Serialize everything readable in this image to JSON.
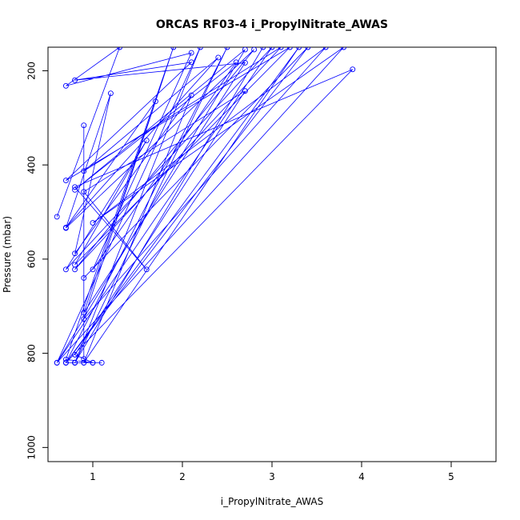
{
  "chart_data": {
    "type": "line",
    "title": "ORCAS RF03-4 i_PropylNitrate_AWAS",
    "xlabel": "i_PropylNitrate_AWAS",
    "ylabel": "Pressure (mbar)",
    "xlim": [
      0.5,
      5.5
    ],
    "ylim": [
      1030,
      150
    ],
    "y_reversed": true,
    "x_ticks": [
      1,
      2,
      3,
      4,
      5
    ],
    "y_ticks": [
      200,
      400,
      600,
      800,
      1000
    ],
    "grid": false,
    "legend": "none",
    "line_color": "#0000ff",
    "marker": "open-circle",
    "series": [
      {
        "x": [
          0.6,
          1.3,
          0.7,
          2.1,
          1.0,
          2.6,
          0.8,
          2.7,
          0.6,
          3.0,
          0.7,
          1.6,
          0.8,
          3.2,
          0.7,
          2.1,
          0.8,
          2.7,
          0.9,
          1.7,
          0.7,
          2.4,
          0.9,
          3.1,
          0.8,
          2.8,
          0.7,
          1.2,
          0.8,
          2.1,
          0.9,
          3.3,
          0.7,
          3.9,
          0.8,
          1.6,
          0.9,
          2.7,
          0.8,
          1.0,
          0.7,
          1.9,
          0.9,
          3.6,
          1.0,
          3.8,
          0.6,
          2.2,
          0.8,
          2.9,
          0.8,
          2.5,
          0.7,
          3.4,
          0.9,
          0.9,
          0.9,
          1.0,
          0.8,
          1.1,
          0.8,
          0.9,
          0.7
        ],
        "y": [
          510,
          150,
          232,
          162,
          622,
          182,
          453,
          155,
          820,
          150,
          622,
          348,
          612,
          150,
          433,
          182,
          220,
          183,
          714,
          265,
          533,
          172,
          413,
          150,
          622,
          155,
          534,
          248,
          588,
          252,
          820,
          150,
          820,
          197,
          447,
          622,
          457,
          243,
          803,
          820,
          813,
          150,
          727,
          150,
          523,
          150,
          820,
          150,
          820,
          150,
          820,
          150,
          820,
          150,
          640,
          316,
          812,
          820,
          820,
          820,
          820,
          820,
          820
        ]
      }
    ]
  }
}
